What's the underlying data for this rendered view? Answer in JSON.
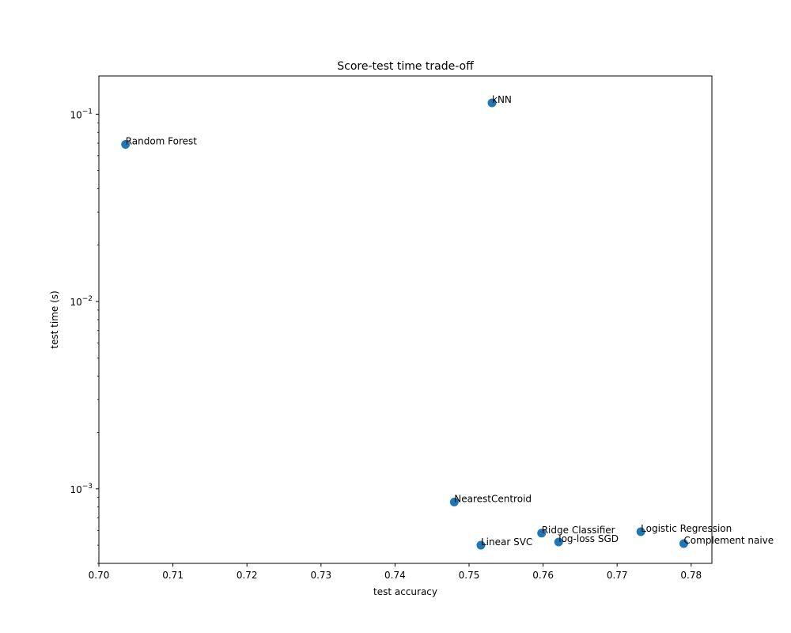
{
  "chart_data": {
    "type": "scatter",
    "title": "Score-test time trade-off",
    "xlabel": "test accuracy",
    "ylabel": "test time (s)",
    "xlim": [
      0.7,
      0.7828
    ],
    "ylim": [
      0.0004,
      0.16
    ],
    "yscale": "log",
    "grid": false,
    "marker_color": "#1f77b4",
    "x_ticks": [
      {
        "value": 0.7,
        "label": "0.70"
      },
      {
        "value": 0.71,
        "label": "0.71"
      },
      {
        "value": 0.72,
        "label": "0.72"
      },
      {
        "value": 0.73,
        "label": "0.73"
      },
      {
        "value": 0.74,
        "label": "0.74"
      },
      {
        "value": 0.75,
        "label": "0.75"
      },
      {
        "value": 0.76,
        "label": "0.76"
      },
      {
        "value": 0.77,
        "label": "0.77"
      },
      {
        "value": 0.78,
        "label": "0.78"
      }
    ],
    "y_ticks": [
      {
        "value": 0.001,
        "base": "10",
        "exp": "−3"
      },
      {
        "value": 0.01,
        "base": "10",
        "exp": "−2"
      },
      {
        "value": 0.1,
        "base": "10",
        "exp": "−1"
      }
    ],
    "points": [
      {
        "label": "Random Forest",
        "x": 0.7036,
        "y": 0.069
      },
      {
        "label": "kNN",
        "x": 0.7531,
        "y": 0.115
      },
      {
        "label": "NearestCentroid",
        "x": 0.748,
        "y": 0.00085
      },
      {
        "label": "Ridge Classifier",
        "x": 0.7598,
        "y": 0.00058
      },
      {
        "label": "Logistic Regression",
        "x": 0.7732,
        "y": 0.00059
      },
      {
        "label": "log-loss SGD",
        "x": 0.7621,
        "y": 0.00052
      },
      {
        "label": "Linear SVC",
        "x": 0.7516,
        "y": 0.0005
      },
      {
        "label": "Complement naive",
        "x": 0.779,
        "y": 0.00051
      }
    ]
  }
}
